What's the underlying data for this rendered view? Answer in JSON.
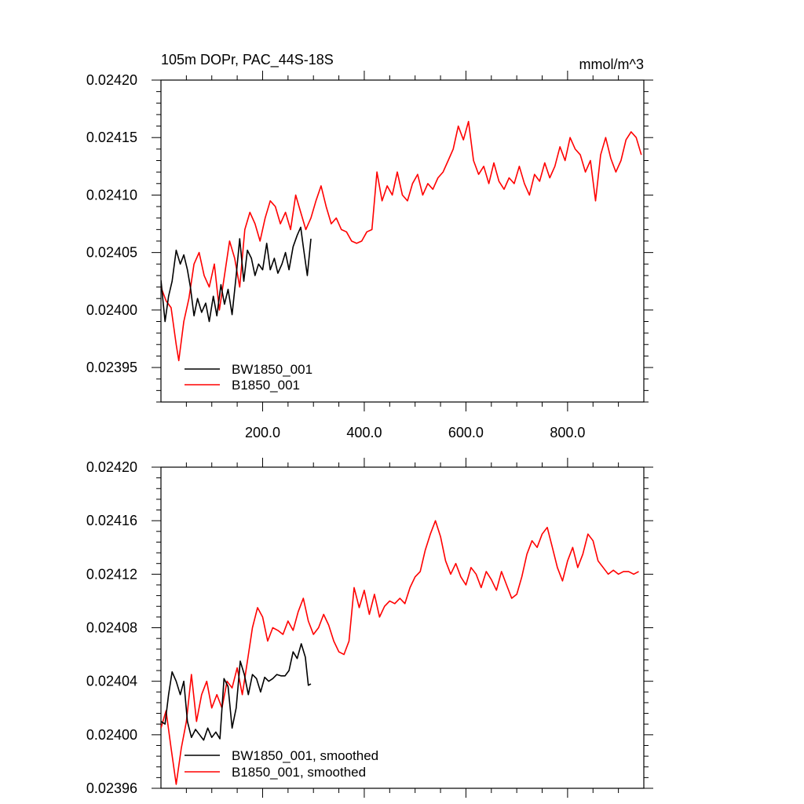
{
  "chart_data": [
    {
      "type": "line",
      "title": "105m DOPr, PAC_44S-18S",
      "units": "mmol/m^3",
      "xlim": [
        0,
        950
      ],
      "ylim": [
        0.02392,
        0.0242
      ],
      "x_ticks": [
        200,
        400,
        600,
        800
      ],
      "x_tick_labels": [
        "200.0",
        "400.0",
        "600.0",
        "800.0"
      ],
      "y_ticks": [
        0.02395,
        0.024,
        0.02405,
        0.0241,
        0.02415,
        0.0242
      ],
      "y_tick_labels": [
        "0.02395",
        "0.02400",
        "0.02405",
        "0.02410",
        "0.02415",
        "0.02420"
      ],
      "legend_position": "lower-left",
      "series": [
        {
          "name": "BW1850_001",
          "color": "#000000",
          "x": [
            0,
            8,
            15,
            22,
            30,
            38,
            45,
            52,
            58,
            65,
            72,
            80,
            88,
            95,
            103,
            110,
            118,
            125,
            132,
            140,
            148,
            155,
            163,
            170,
            178,
            185,
            192,
            200,
            208,
            215,
            223,
            230,
            238,
            245,
            252,
            260,
            268,
            275,
            280,
            288,
            295
          ],
          "y": [
            0.024026,
            0.02399,
            0.024012,
            0.024025,
            0.024052,
            0.02404,
            0.024048,
            0.024035,
            0.02402,
            0.023995,
            0.02401,
            0.023998,
            0.024006,
            0.02399,
            0.024012,
            0.023995,
            0.024022,
            0.024005,
            0.024018,
            0.023996,
            0.02403,
            0.024062,
            0.024025,
            0.024052,
            0.024045,
            0.02403,
            0.02404,
            0.024035,
            0.024058,
            0.024035,
            0.024045,
            0.024032,
            0.02404,
            0.02405,
            0.024035,
            0.024055,
            0.024065,
            0.024072,
            0.024055,
            0.02403,
            0.024062
          ]
        },
        {
          "name": "B1850_001",
          "color": "#ff0000",
          "x": [
            0,
            10,
            20,
            30,
            35,
            45,
            55,
            65,
            75,
            85,
            95,
            105,
            115,
            125,
            135,
            145,
            155,
            165,
            175,
            185,
            195,
            205,
            215,
            225,
            235,
            245,
            255,
            265,
            275,
            285,
            295,
            305,
            315,
            325,
            335,
            345,
            355,
            365,
            375,
            385,
            395,
            405,
            415,
            425,
            435,
            445,
            455,
            465,
            475,
            485,
            495,
            505,
            515,
            525,
            535,
            545,
            555,
            565,
            575,
            585,
            595,
            605,
            615,
            625,
            635,
            645,
            655,
            665,
            675,
            685,
            695,
            705,
            715,
            725,
            735,
            745,
            755,
            765,
            775,
            785,
            795,
            805,
            815,
            825,
            835,
            845,
            855,
            865,
            875,
            885,
            895,
            905,
            915,
            925,
            935,
            945
          ],
          "y": [
            0.02402,
            0.024008,
            0.024002,
            0.02397,
            0.023956,
            0.02399,
            0.02401,
            0.02404,
            0.02405,
            0.02403,
            0.02402,
            0.02404,
            0.024,
            0.02403,
            0.02406,
            0.024045,
            0.02402,
            0.02407,
            0.024085,
            0.024075,
            0.02406,
            0.02408,
            0.024095,
            0.02409,
            0.024075,
            0.024085,
            0.02407,
            0.0241,
            0.024085,
            0.02407,
            0.02408,
            0.024095,
            0.024108,
            0.02409,
            0.024075,
            0.02408,
            0.02407,
            0.024068,
            0.02406,
            0.024058,
            0.02406,
            0.024068,
            0.02407,
            0.02412,
            0.024095,
            0.024108,
            0.0241,
            0.02412,
            0.0241,
            0.024095,
            0.02411,
            0.024118,
            0.0241,
            0.02411,
            0.024105,
            0.024115,
            0.02412,
            0.02413,
            0.02414,
            0.02416,
            0.024148,
            0.024164,
            0.02413,
            0.024118,
            0.024125,
            0.02411,
            0.024128,
            0.024112,
            0.024105,
            0.024115,
            0.02411,
            0.024125,
            0.02411,
            0.0241,
            0.024118,
            0.024112,
            0.024128,
            0.024115,
            0.024125,
            0.024142,
            0.02413,
            0.02415,
            0.02414,
            0.024135,
            0.02412,
            0.02413,
            0.024095,
            0.024135,
            0.02415,
            0.024132,
            0.02412,
            0.02413,
            0.024148,
            0.024155,
            0.02415,
            0.024135
          ]
        }
      ]
    },
    {
      "type": "line",
      "title": "",
      "xlim": [
        0,
        950
      ],
      "ylim": [
        0.02396,
        0.0242
      ],
      "x_ticks": [
        200,
        400,
        600,
        800
      ],
      "x_tick_labels": [],
      "y_ticks": [
        0.02396,
        0.024,
        0.02404,
        0.02408,
        0.02412,
        0.02416,
        0.0242
      ],
      "y_tick_labels": [
        "0.02396",
        "0.02400",
        "0.02404",
        "0.02408",
        "0.02412",
        "0.02416",
        "0.02420"
      ],
      "legend_position": "lower-left",
      "series": [
        {
          "name": "BW1850_001, smoothed",
          "color": "#000000",
          "x": [
            0,
            8,
            15,
            22,
            30,
            38,
            45,
            52,
            60,
            68,
            76,
            84,
            92,
            100,
            108,
            116,
            124,
            132,
            140,
            148,
            156,
            164,
            172,
            180,
            188,
            196,
            204,
            212,
            220,
            228,
            236,
            244,
            252,
            260,
            268,
            276,
            284,
            290,
            295
          ],
          "y": [
            0.02401,
            0.024008,
            0.02403,
            0.024047,
            0.02404,
            0.02403,
            0.02404,
            0.02401,
            0.023998,
            0.024004,
            0.024,
            0.023996,
            0.024005,
            0.023998,
            0.024002,
            0.023997,
            0.024042,
            0.024036,
            0.024005,
            0.02402,
            0.024055,
            0.024045,
            0.02403,
            0.024045,
            0.024042,
            0.024032,
            0.024043,
            0.02404,
            0.024042,
            0.024045,
            0.024044,
            0.024044,
            0.024048,
            0.024062,
            0.024057,
            0.024068,
            0.024058,
            0.024037,
            0.024038
          ]
        },
        {
          "name": "B1850_001, smoothed",
          "color": "#ff0000",
          "x": [
            0,
            10,
            20,
            30,
            40,
            50,
            60,
            70,
            80,
            90,
            100,
            110,
            120,
            130,
            140,
            150,
            160,
            170,
            180,
            190,
            200,
            210,
            220,
            230,
            240,
            250,
            260,
            270,
            280,
            290,
            300,
            310,
            320,
            330,
            340,
            350,
            360,
            370,
            380,
            390,
            400,
            410,
            420,
            430,
            440,
            450,
            460,
            470,
            480,
            490,
            500,
            510,
            520,
            530,
            540,
            550,
            560,
            570,
            580,
            590,
            600,
            610,
            620,
            630,
            640,
            650,
            660,
            670,
            680,
            690,
            700,
            710,
            720,
            730,
            740,
            750,
            760,
            770,
            780,
            790,
            800,
            810,
            820,
            830,
            840,
            850,
            860,
            870,
            880,
            890,
            900,
            910,
            920,
            930,
            940
          ],
          "y": [
            0.024005,
            0.024018,
            0.02399,
            0.023963,
            0.02399,
            0.02401,
            0.024045,
            0.02401,
            0.02403,
            0.02404,
            0.02402,
            0.02403,
            0.02402,
            0.02404,
            0.024035,
            0.02405,
            0.02403,
            0.024055,
            0.02408,
            0.024095,
            0.024088,
            0.02407,
            0.02408,
            0.024078,
            0.024075,
            0.024085,
            0.024078,
            0.024092,
            0.024102,
            0.024085,
            0.024075,
            0.02408,
            0.02409,
            0.024082,
            0.02407,
            0.024062,
            0.02406,
            0.02407,
            0.02411,
            0.024095,
            0.024108,
            0.02409,
            0.024105,
            0.024088,
            0.024096,
            0.0241,
            0.024098,
            0.024102,
            0.024098,
            0.02411,
            0.024118,
            0.024122,
            0.024138,
            0.02415,
            0.02416,
            0.024148,
            0.02413,
            0.02412,
            0.024128,
            0.024118,
            0.024112,
            0.024125,
            0.02412,
            0.02411,
            0.024122,
            0.024116,
            0.024108,
            0.024122,
            0.024112,
            0.024102,
            0.024105,
            0.024118,
            0.024135,
            0.024145,
            0.02414,
            0.02415,
            0.024155,
            0.02414,
            0.024125,
            0.024115,
            0.02413,
            0.02414,
            0.024125,
            0.024135,
            0.02415,
            0.024145,
            0.02413,
            0.024125,
            0.02412,
            0.024123,
            0.02412,
            0.024122,
            0.024122,
            0.02412,
            0.024122
          ]
        }
      ]
    }
  ]
}
